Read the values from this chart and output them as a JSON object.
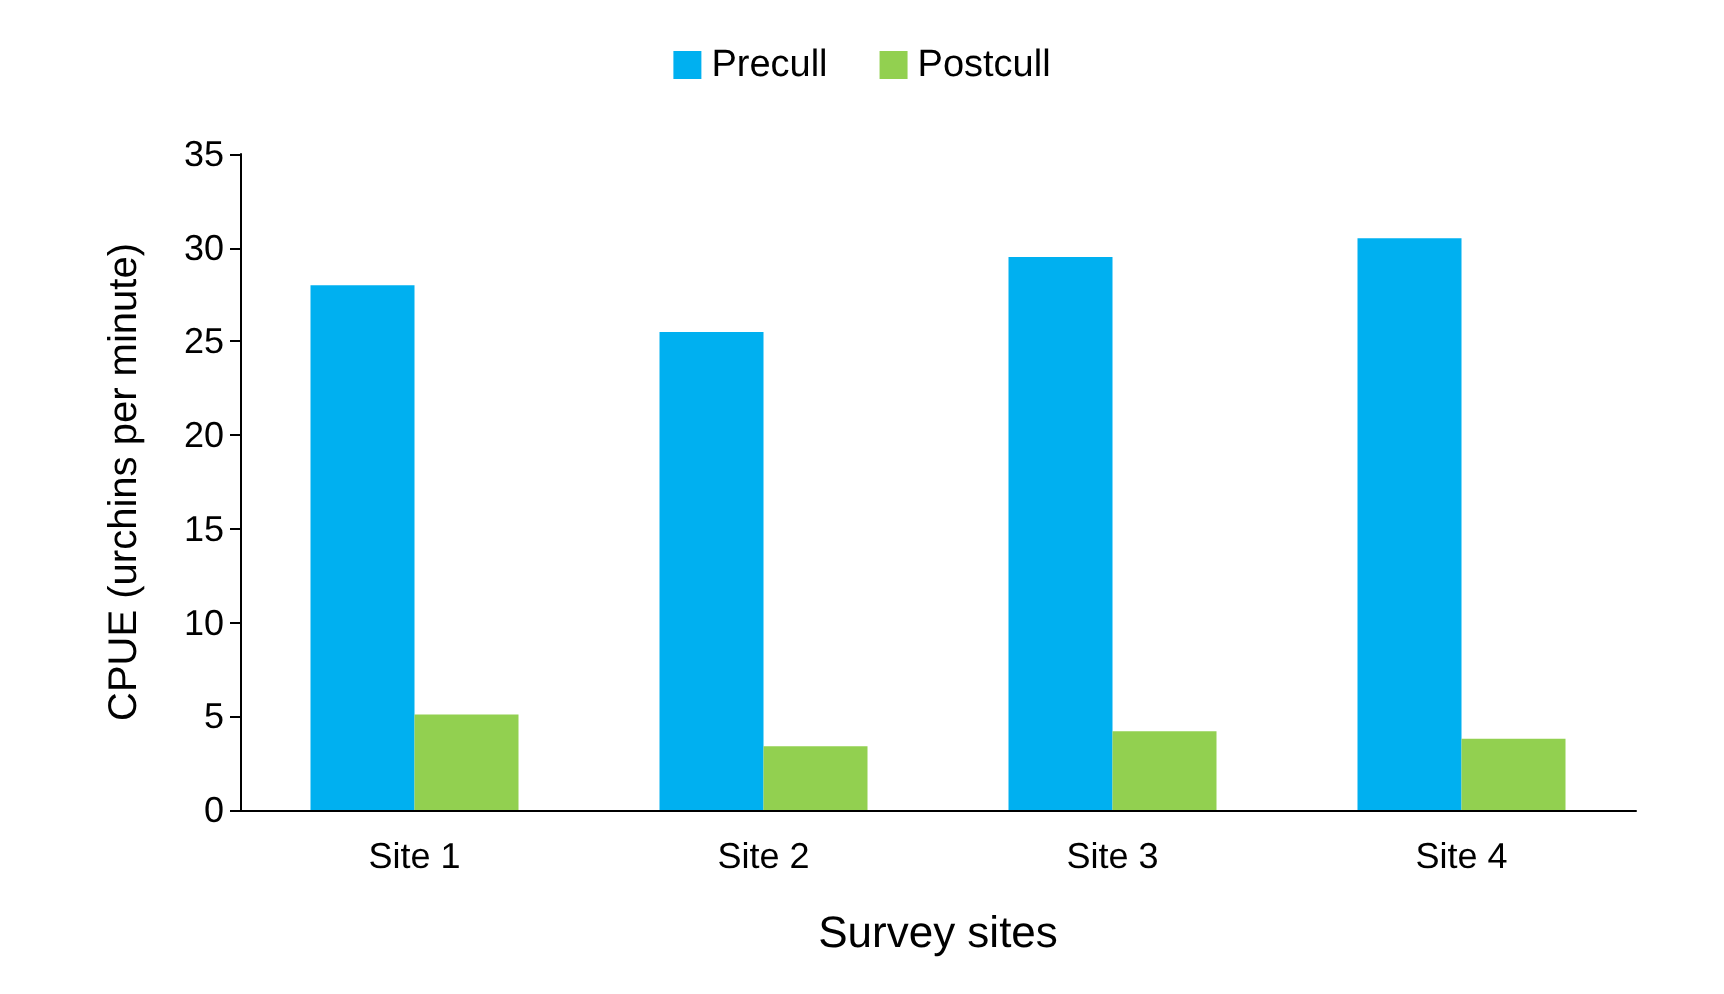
{
  "chart_data": {
    "type": "bar",
    "xlabel": "Survey sites",
    "ylabel": "CPUE (urchins per minute)",
    "categories": [
      "Site 1",
      "Site 2",
      "Site 3",
      "Site 4"
    ],
    "series": [
      {
        "name": "Precull",
        "color": "#00b0f0",
        "values": [
          28,
          25.5,
          29.5,
          30.5
        ]
      },
      {
        "name": "Postcull",
        "color": "#92d050",
        "values": [
          5.1,
          3.4,
          4.2,
          3.8
        ]
      }
    ],
    "ylim": [
      0,
      35
    ],
    "yticks": [
      0,
      5,
      10,
      15,
      20,
      25,
      30,
      35
    ],
    "grid": false,
    "legend": "top"
  }
}
